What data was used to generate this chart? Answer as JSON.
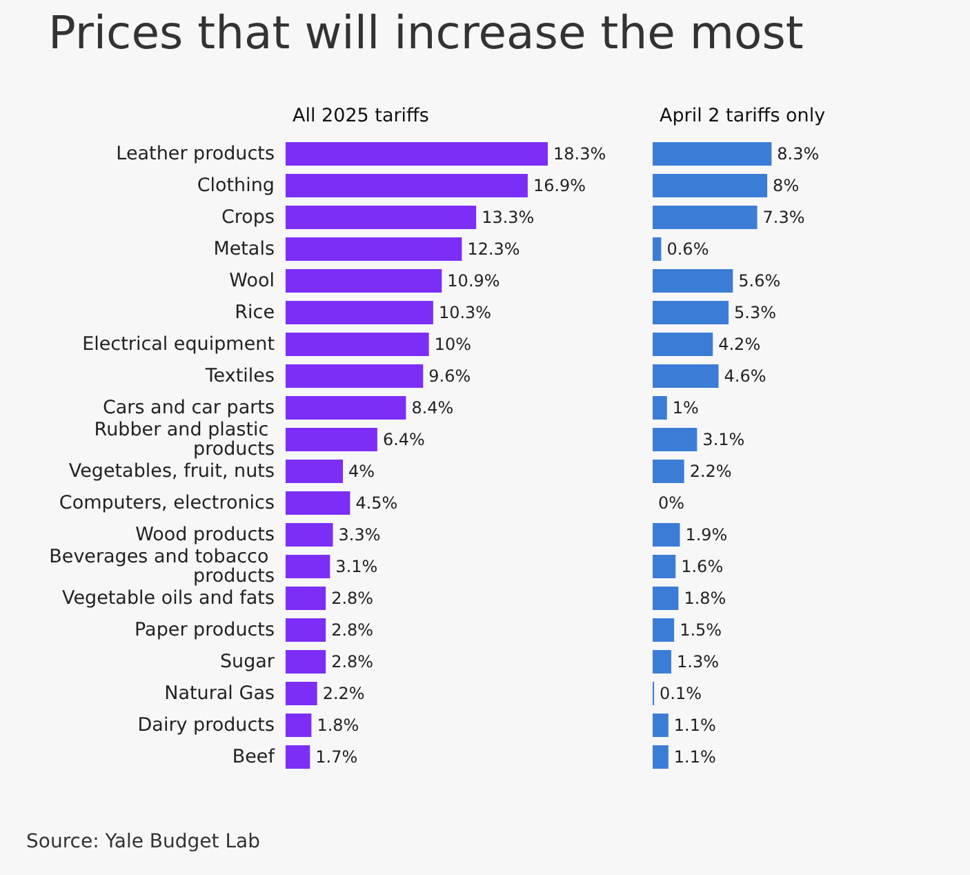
{
  "chart_data": [
    {
      "type": "bar",
      "orientation": "horizontal",
      "title": "Prices that will increase the most",
      "subtitle": "All 2025 tariffs",
      "tick_labels": "y",
      "color": "#7c2ef6",
      "categories": [
        "Leather products",
        "Clothing",
        "Crops",
        "Metals",
        "Wool",
        "Rice",
        "Electrical equipment",
        "Textiles",
        "Cars and car parts",
        "Rubber and plastic products",
        "Vegetables, fruit, nuts",
        "Computers, electronics",
        "Wood products",
        "Beverages and tobacco products",
        "Vegetable oils and fats",
        "Paper products",
        "Sugar",
        "Natural Gas",
        "Dairy products",
        "Beef"
      ],
      "values": [
        18.3,
        16.9,
        13.3,
        12.3,
        10.9,
        10.3,
        10,
        9.6,
        8.4,
        6.4,
        4,
        4.5,
        3.3,
        3.1,
        2.8,
        2.8,
        2.8,
        2.2,
        1.8,
        1.7
      ],
      "value_labels": [
        "18.3%",
        "16.9%",
        "13.3%",
        "12.3%",
        "10.9%",
        "10.3%",
        "10%",
        "9.6%",
        "8.4%",
        "6.4%",
        "4%",
        "4.5%",
        "3.3%",
        "3.1%",
        "2.8%",
        "2.8%",
        "2.8%",
        "2.2%",
        "1.8%",
        "1.7%"
      ],
      "annotations": [
        "Source: Yale Budget Lab"
      ]
    },
    {
      "type": "bar",
      "orientation": "horizontal",
      "title": "April 2 tariffs only",
      "tick_labels": false,
      "color": "#3b7dd6",
      "categories": [
        "Leather products",
        "Clothing",
        "Crops",
        "Metals",
        "Wool",
        "Rice",
        "Electrical equipment",
        "Textiles",
        "Cars and car parts",
        "Rubber and plastic products",
        "Vegetables, fruit, nuts",
        "Computers, electronics",
        "Wood products",
        "Beverages and tobacco products",
        "Vegetable oils and fats",
        "Paper products",
        "Sugar",
        "Natural Gas",
        "Dairy products",
        "Beef"
      ],
      "values": [
        8.3,
        8,
        7.3,
        0.6,
        5.6,
        5.3,
        4.2,
        4.6,
        1,
        3.1,
        2.2,
        0,
        1.9,
        1.6,
        1.8,
        1.5,
        1.3,
        0.1,
        1.1,
        1.1
      ],
      "value_labels": [
        "8.3%",
        "8%",
        "7.3%",
        "0.6%",
        "5.6%",
        "5.3%",
        "4.2%",
        "4.6%",
        "1%",
        "3.1%",
        "2.2%",
        "0%",
        "1.9%",
        "1.6%",
        "1.8%",
        "1.5%",
        "1.3%",
        "0.1%",
        "1.1%",
        "1.1%"
      ]
    }
  ]
}
